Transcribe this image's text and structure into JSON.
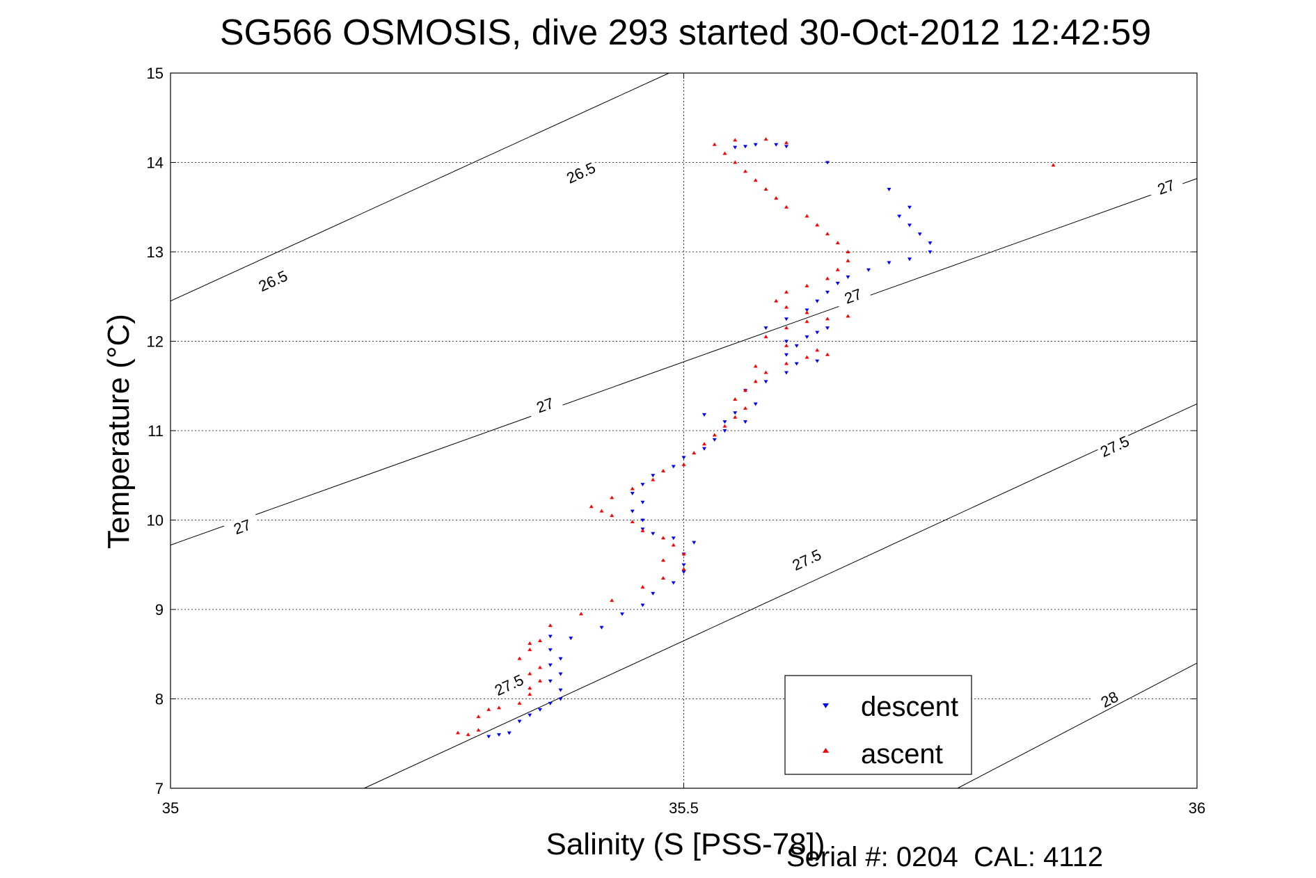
{
  "chart_data": {
    "type": "scatter",
    "title": "SG566 OSMOSIS, dive 293 started 30-Oct-2012 12:42:59",
    "xlabel": "Salinity (S [PSS-78])",
    "ylabel": "Temperature (°C)",
    "xlim": [
      35,
      36
    ],
    "ylim": [
      7,
      15
    ],
    "x_ticks": [
      "35",
      "35.5",
      "36"
    ],
    "y_ticks": [
      "7",
      "8",
      "9",
      "10",
      "11",
      "12",
      "13",
      "14",
      "15"
    ],
    "grid": true,
    "legend_position": "bottom-right",
    "density_contours": [
      {
        "level": "26.5",
        "y_at_35": 12.45,
        "y_at_36": 17.7,
        "labels": [
          [
            35.1,
            12.67
          ],
          [
            35.4,
            13.88
          ]
        ]
      },
      {
        "level": "27",
        "y_at_35": 9.72,
        "y_at_36": 13.82,
        "labels": [
          [
            35.07,
            9.92
          ],
          [
            35.365,
            11.28
          ],
          [
            35.665,
            12.5
          ],
          [
            35.97,
            13.72
          ]
        ]
      },
      {
        "level": "27.5",
        "y_at_35": 6.0,
        "y_at_36": 11.3,
        "labels": [
          [
            35.33,
            8.15
          ],
          [
            35.62,
            9.55
          ],
          [
            35.92,
            10.82
          ]
        ]
      },
      {
        "level": "28",
        "y_at_35": 2.4,
        "y_at_36": 8.4,
        "labels": [
          [
            35.915,
            7.99
          ]
        ]
      }
    ],
    "series": [
      {
        "name": "descent",
        "color": "#0000ff",
        "marker": "triangle-down",
        "points": [
          [
            35.31,
            7.58
          ],
          [
            35.32,
            7.6
          ],
          [
            35.33,
            7.62
          ],
          [
            35.34,
            7.75
          ],
          [
            35.35,
            7.82
          ],
          [
            35.36,
            7.88
          ],
          [
            35.37,
            7.95
          ],
          [
            35.38,
            8.0
          ],
          [
            35.38,
            8.1
          ],
          [
            35.37,
            8.2
          ],
          [
            35.38,
            8.28
          ],
          [
            35.37,
            8.38
          ],
          [
            35.38,
            8.45
          ],
          [
            35.37,
            8.55
          ],
          [
            35.37,
            8.7
          ],
          [
            35.39,
            8.68
          ],
          [
            35.42,
            8.8
          ],
          [
            35.44,
            8.95
          ],
          [
            35.46,
            9.05
          ],
          [
            35.47,
            9.18
          ],
          [
            35.49,
            9.3
          ],
          [
            35.5,
            9.42
          ],
          [
            35.5,
            9.5
          ],
          [
            35.5,
            9.62
          ],
          [
            35.51,
            9.75
          ],
          [
            35.49,
            9.8
          ],
          [
            35.47,
            9.85
          ],
          [
            35.46,
            9.9
          ],
          [
            35.46,
            10.0
          ],
          [
            35.45,
            10.1
          ],
          [
            35.46,
            10.2
          ],
          [
            35.45,
            10.3
          ],
          [
            35.46,
            10.4
          ],
          [
            35.47,
            10.5
          ],
          [
            35.49,
            10.6
          ],
          [
            35.5,
            10.7
          ],
          [
            35.52,
            10.8
          ],
          [
            35.53,
            10.9
          ],
          [
            35.54,
            11.0
          ],
          [
            35.54,
            11.1
          ],
          [
            35.55,
            11.2
          ],
          [
            35.57,
            11.3
          ],
          [
            35.56,
            11.1
          ],
          [
            35.52,
            11.18
          ],
          [
            35.56,
            11.45
          ],
          [
            35.58,
            11.55
          ],
          [
            35.6,
            11.65
          ],
          [
            35.61,
            11.75
          ],
          [
            35.63,
            11.78
          ],
          [
            35.6,
            11.85
          ],
          [
            35.61,
            11.95
          ],
          [
            35.62,
            12.05
          ],
          [
            35.63,
            12.1
          ],
          [
            35.64,
            12.15
          ],
          [
            35.6,
            12.0
          ],
          [
            35.58,
            12.15
          ],
          [
            35.6,
            12.25
          ],
          [
            35.62,
            12.35
          ],
          [
            35.63,
            12.45
          ],
          [
            35.64,
            12.55
          ],
          [
            35.65,
            12.65
          ],
          [
            35.66,
            12.72
          ],
          [
            35.68,
            12.8
          ],
          [
            35.7,
            12.88
          ],
          [
            35.72,
            12.92
          ],
          [
            35.74,
            13.0
          ],
          [
            35.74,
            13.1
          ],
          [
            35.73,
            13.2
          ],
          [
            35.72,
            13.3
          ],
          [
            35.71,
            13.4
          ],
          [
            35.72,
            13.5
          ],
          [
            35.7,
            13.7
          ],
          [
            35.64,
            14.0
          ],
          [
            35.6,
            14.18
          ],
          [
            35.57,
            14.2
          ],
          [
            35.56,
            14.18
          ],
          [
            35.55,
            14.17
          ],
          [
            35.59,
            14.2
          ]
        ]
      },
      {
        "name": "ascent",
        "color": "#ff0000",
        "marker": "triangle-up",
        "points": [
          [
            35.28,
            7.62
          ],
          [
            35.29,
            7.6
          ],
          [
            35.3,
            7.65
          ],
          [
            35.3,
            7.8
          ],
          [
            35.31,
            7.88
          ],
          [
            35.32,
            7.9
          ],
          [
            35.34,
            7.95
          ],
          [
            35.35,
            8.05
          ],
          [
            35.35,
            8.12
          ],
          [
            35.36,
            8.2
          ],
          [
            35.35,
            8.28
          ],
          [
            35.36,
            8.35
          ],
          [
            35.34,
            8.45
          ],
          [
            35.35,
            8.55
          ],
          [
            35.36,
            8.65
          ],
          [
            35.35,
            8.62
          ],
          [
            35.37,
            8.82
          ],
          [
            35.4,
            8.95
          ],
          [
            35.43,
            9.1
          ],
          [
            35.46,
            9.25
          ],
          [
            35.48,
            9.35
          ],
          [
            35.5,
            9.45
          ],
          [
            35.48,
            9.55
          ],
          [
            35.5,
            9.62
          ],
          [
            35.49,
            9.72
          ],
          [
            35.48,
            9.8
          ],
          [
            35.46,
            9.88
          ],
          [
            35.45,
            9.98
          ],
          [
            35.43,
            10.05
          ],
          [
            35.42,
            10.1
          ],
          [
            35.41,
            10.15
          ],
          [
            35.43,
            10.25
          ],
          [
            35.45,
            10.35
          ],
          [
            35.47,
            10.45
          ],
          [
            35.48,
            10.55
          ],
          [
            35.5,
            10.62
          ],
          [
            35.51,
            10.75
          ],
          [
            35.52,
            10.85
          ],
          [
            35.53,
            10.95
          ],
          [
            35.54,
            11.05
          ],
          [
            35.55,
            11.15
          ],
          [
            35.56,
            11.25
          ],
          [
            35.55,
            11.35
          ],
          [
            35.56,
            11.45
          ],
          [
            35.57,
            11.55
          ],
          [
            35.58,
            11.65
          ],
          [
            35.57,
            11.72
          ],
          [
            35.6,
            11.75
          ],
          [
            35.62,
            11.82
          ],
          [
            35.64,
            11.85
          ],
          [
            35.63,
            11.9
          ],
          [
            35.6,
            11.95
          ],
          [
            35.58,
            12.05
          ],
          [
            35.6,
            12.15
          ],
          [
            35.62,
            12.22
          ],
          [
            35.64,
            12.25
          ],
          [
            35.66,
            12.28
          ],
          [
            35.62,
            12.32
          ],
          [
            35.6,
            12.38
          ],
          [
            35.59,
            12.45
          ],
          [
            35.6,
            12.55
          ],
          [
            35.62,
            12.62
          ],
          [
            35.64,
            12.7
          ],
          [
            35.65,
            12.8
          ],
          [
            35.66,
            12.9
          ],
          [
            35.66,
            13.0
          ],
          [
            35.65,
            13.1
          ],
          [
            35.64,
            13.2
          ],
          [
            35.63,
            13.3
          ],
          [
            35.62,
            13.4
          ],
          [
            35.6,
            13.5
          ],
          [
            35.59,
            13.6
          ],
          [
            35.58,
            13.7
          ],
          [
            35.57,
            13.8
          ],
          [
            35.56,
            13.9
          ],
          [
            35.55,
            14.0
          ],
          [
            35.54,
            14.1
          ],
          [
            35.53,
            14.2
          ],
          [
            35.55,
            14.25
          ],
          [
            35.58,
            14.26
          ],
          [
            35.6,
            14.22
          ],
          [
            35.86,
            13.97
          ]
        ]
      }
    ]
  },
  "footer": {
    "text": "Serial #: 0204  CAL: 4112"
  }
}
